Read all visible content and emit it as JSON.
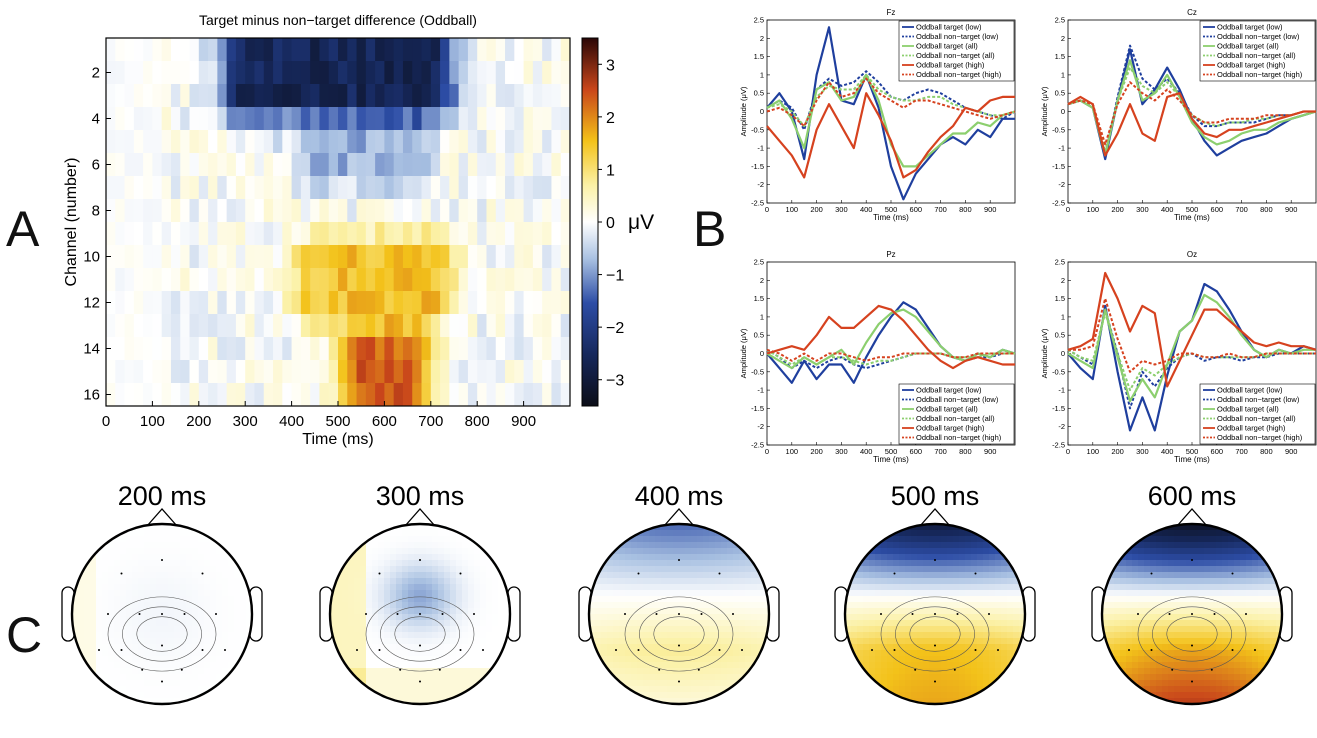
{
  "panel_letters": [
    "A",
    "B",
    "C"
  ],
  "colors": {
    "target_low": "#1f3f9e",
    "target_all": "#8ccf6e",
    "target_high": "#d6421f",
    "axis": "#000000"
  },
  "chart_data": [
    {
      "type": "heatmap",
      "panel": "A",
      "title": "Target minus non−target difference (Oddball)",
      "xlabel": "Time (ms)",
      "ylabel": "Channel (number)",
      "xlim": [
        0,
        1000
      ],
      "ylim": [
        1,
        16
      ],
      "x_ticks": [
        "0",
        "100",
        "200",
        "300",
        "400",
        "500",
        "600",
        "700",
        "800",
        "900"
      ],
      "y_ticks": [
        "2",
        "4",
        "6",
        "8",
        "10",
        "12",
        "14",
        "16"
      ],
      "colorbar": {
        "label": "μV",
        "range": [
          -3.5,
          3.5
        ],
        "ticks": [
          "3",
          "2",
          "1",
          "0",
          "−1",
          "−2",
          "−3"
        ]
      },
      "features": [
        {
          "channels": [
            1,
            3
          ],
          "t_from": 300,
          "t_to": 700,
          "value_uv": -2.6
        },
        {
          "channels": [
            5,
            6
          ],
          "t_from": 450,
          "t_to": 650,
          "value_uv": -0.8
        },
        {
          "channels": [
            10,
            12
          ],
          "t_from": 450,
          "t_to": 700,
          "value_uv": 1.5
        },
        {
          "channels": [
            14,
            16
          ],
          "t_from": 550,
          "t_to": 650,
          "value_uv": 2.3
        }
      ]
    },
    {
      "type": "line",
      "panel": "B",
      "title": "Fz",
      "xlabel": "Time (ms)",
      "ylabel": "Amplitude (μV)",
      "xlim": [
        0,
        1000
      ],
      "ylim": [
        -2.5,
        2.5
      ],
      "x_ticks": [
        "0",
        "100",
        "200",
        "300",
        "400",
        "500",
        "600",
        "700",
        "800",
        "900"
      ],
      "y_ticks": [
        "2.5",
        "2",
        "1.5",
        "1",
        "0.5",
        "0",
        "-0.5",
        "-1",
        "-1.5",
        "-2",
        "-2.5"
      ],
      "legend": [
        "Oddball target (low)",
        "Oddball non−target (low)",
        "Oddball target (all)",
        "Oddball non−target (all)",
        "Oddball target (high)",
        "Oddball non−target (high)"
      ],
      "legend_position": "top-right",
      "x": [
        0,
        50,
        100,
        150,
        200,
        250,
        300,
        350,
        400,
        450,
        500,
        550,
        600,
        650,
        700,
        750,
        800,
        850,
        900,
        950,
        1000
      ],
      "series": [
        {
          "name": "Oddball target (low)",
          "values": [
            0.1,
            0.5,
            0.0,
            -1.3,
            1.0,
            2.3,
            0.3,
            0.2,
            1.0,
            0.1,
            -1.5,
            -2.4,
            -1.7,
            -1.3,
            -0.9,
            -0.7,
            -0.9,
            -0.5,
            -0.7,
            -0.2,
            -0.2
          ]
        },
        {
          "name": "Oddball non−target (low)",
          "values": [
            0.1,
            0.3,
            0.1,
            -0.5,
            0.6,
            0.9,
            0.7,
            0.8,
            1.1,
            0.8,
            0.4,
            0.3,
            0.5,
            0.6,
            0.5,
            0.3,
            0.1,
            0.0,
            -0.1,
            -0.2,
            0.0
          ]
        },
        {
          "name": "Oddball target (all)",
          "values": [
            0.1,
            0.3,
            -0.2,
            -1.0,
            0.6,
            0.8,
            0.3,
            0.4,
            1.0,
            0.3,
            -0.9,
            -1.5,
            -1.5,
            -1.2,
            -0.9,
            -0.6,
            -0.6,
            -0.3,
            -0.4,
            -0.1,
            0.0
          ]
        },
        {
          "name": "Oddball non−target (all)",
          "values": [
            0.1,
            0.2,
            0.0,
            -0.4,
            0.4,
            0.7,
            0.6,
            0.6,
            1.0,
            0.6,
            0.4,
            0.3,
            0.3,
            0.4,
            0.4,
            0.2,
            0.1,
            0.0,
            -0.1,
            -0.1,
            0.0
          ]
        },
        {
          "name": "Oddball target (high)",
          "values": [
            -0.4,
            -0.8,
            -1.2,
            -1.8,
            -0.5,
            0.2,
            -0.4,
            -1.0,
            0.5,
            -0.1,
            -0.8,
            -1.8,
            -1.6,
            -1.1,
            -0.7,
            -0.4,
            0.1,
            0.0,
            0.3,
            0.4,
            0.4
          ]
        },
        {
          "name": "Oddball non−target (high)",
          "values": [
            0.0,
            0.1,
            -0.1,
            -0.4,
            0.3,
            0.8,
            0.4,
            0.5,
            0.9,
            0.5,
            0.3,
            0.1,
            0.3,
            0.3,
            0.2,
            0.1,
            0.0,
            -0.1,
            -0.2,
            -0.1,
            0.0
          ]
        }
      ]
    },
    {
      "type": "line",
      "panel": "B",
      "title": "Cz",
      "xlabel": "Time (ms)",
      "ylabel": "Amplitude (μV)",
      "xlim": [
        0,
        1000
      ],
      "ylim": [
        -2.5,
        2.5
      ],
      "x_ticks": [
        "0",
        "100",
        "200",
        "300",
        "400",
        "500",
        "600",
        "700",
        "800",
        "900"
      ],
      "y_ticks": [
        "2.5",
        "2",
        "1.5",
        "1",
        "0.5",
        "0",
        "-0.5",
        "-1",
        "-1.5",
        "-2",
        "-2.5"
      ],
      "legend": [
        "Oddball target (low)",
        "Oddball non−target (low)",
        "Oddball target (all)",
        "Oddball non−target (all)",
        "Oddball target (high)",
        "Oddball non−target (high)"
      ],
      "legend_position": "top-right",
      "x": [
        0,
        50,
        100,
        150,
        200,
        250,
        300,
        350,
        400,
        450,
        500,
        550,
        600,
        650,
        700,
        750,
        800,
        850,
        900,
        950,
        1000
      ],
      "series": [
        {
          "name": "Oddball target (low)",
          "values": [
            0.2,
            0.3,
            0.1,
            -1.3,
            0.3,
            1.7,
            0.2,
            0.6,
            1.2,
            0.6,
            -0.2,
            -0.8,
            -1.2,
            -1.0,
            -0.8,
            -0.7,
            -0.6,
            -0.4,
            -0.2,
            -0.1,
            0.0
          ]
        },
        {
          "name": "Oddball non−target (low)",
          "values": [
            0.2,
            0.3,
            0.2,
            -1.2,
            0.4,
            1.8,
            0.9,
            0.6,
            0.9,
            0.5,
            -0.1,
            -0.4,
            -0.4,
            -0.3,
            -0.3,
            -0.3,
            -0.2,
            -0.1,
            -0.1,
            0.0,
            0.0
          ]
        },
        {
          "name": "Oddball target (all)",
          "values": [
            0.2,
            0.3,
            0.1,
            -1.2,
            0.3,
            1.4,
            0.3,
            0.5,
            1.0,
            0.4,
            -0.3,
            -0.7,
            -0.9,
            -0.8,
            -0.6,
            -0.5,
            -0.5,
            -0.3,
            -0.2,
            -0.1,
            0.0
          ]
        },
        {
          "name": "Oddball non−target (all)",
          "values": [
            0.2,
            0.3,
            0.2,
            -1.1,
            0.3,
            1.2,
            0.7,
            0.5,
            0.8,
            0.4,
            -0.1,
            -0.3,
            -0.4,
            -0.3,
            -0.3,
            -0.2,
            -0.2,
            -0.1,
            -0.1,
            0.0,
            0.0
          ]
        },
        {
          "name": "Oddball target (high)",
          "values": [
            0.2,
            0.4,
            0.2,
            -1.2,
            -0.6,
            0.2,
            -0.6,
            -0.8,
            0.4,
            0.5,
            -0.2,
            -0.6,
            -0.7,
            -0.5,
            -0.5,
            -0.4,
            -0.3,
            -0.2,
            -0.1,
            0.0,
            0.0
          ]
        },
        {
          "name": "Oddball non−target (high)",
          "values": [
            0.2,
            0.3,
            0.2,
            -0.9,
            0.2,
            0.8,
            0.5,
            0.3,
            0.6,
            0.3,
            -0.1,
            -0.3,
            -0.3,
            -0.2,
            -0.2,
            -0.2,
            -0.1,
            -0.1,
            -0.1,
            0.0,
            0.0
          ]
        }
      ]
    },
    {
      "type": "line",
      "panel": "B",
      "title": "Pz",
      "xlabel": "Time (ms)",
      "ylabel": "Amplitude (μV)",
      "xlim": [
        0,
        1000
      ],
      "ylim": [
        -2.5,
        2.5
      ],
      "x_ticks": [
        "0",
        "100",
        "200",
        "300",
        "400",
        "500",
        "600",
        "700",
        "800",
        "900"
      ],
      "y_ticks": [
        "2.5",
        "2",
        "1.5",
        "1",
        "0.5",
        "0",
        "-0.5",
        "-1",
        "-1.5",
        "-2",
        "-2.5"
      ],
      "legend": [
        "Oddball target (low)",
        "Oddball non−target (low)",
        "Oddball target (all)",
        "Oddball non−target (all)",
        "Oddball target (high)",
        "Oddball non−target (high)"
      ],
      "legend_position": "bottom-right",
      "x": [
        0,
        50,
        100,
        150,
        200,
        250,
        300,
        350,
        400,
        450,
        500,
        550,
        600,
        650,
        700,
        750,
        800,
        850,
        900,
        950,
        1000
      ],
      "series": [
        {
          "name": "Oddball target (low)",
          "values": [
            0.0,
            -0.4,
            -0.8,
            -0.2,
            -0.7,
            -0.3,
            -0.3,
            -0.8,
            -0.1,
            0.5,
            1.0,
            1.4,
            1.2,
            0.7,
            0.2,
            -0.1,
            -0.2,
            0.0,
            -0.1,
            0.1,
            0.0
          ]
        },
        {
          "name": "Oddball non−target (low)",
          "values": [
            0.1,
            -0.1,
            -0.4,
            -0.2,
            -0.4,
            -0.2,
            -0.1,
            -0.3,
            -0.4,
            -0.3,
            -0.2,
            -0.1,
            0.0,
            0.0,
            0.0,
            -0.1,
            -0.2,
            -0.1,
            -0.1,
            0.0,
            0.0
          ]
        },
        {
          "name": "Oddball target (all)",
          "values": [
            0.0,
            -0.2,
            -0.4,
            -0.1,
            -0.3,
            -0.1,
            0.1,
            -0.3,
            0.3,
            0.8,
            1.1,
            1.2,
            1.0,
            0.6,
            0.2,
            -0.1,
            -0.2,
            0.0,
            -0.1,
            0.1,
            0.0
          ]
        },
        {
          "name": "Oddball non−target (all)",
          "values": [
            0.1,
            -0.1,
            -0.3,
            -0.1,
            -0.3,
            -0.1,
            -0.1,
            -0.2,
            -0.3,
            -0.2,
            -0.2,
            -0.1,
            0.0,
            0.0,
            0.0,
            -0.1,
            -0.1,
            -0.1,
            0.0,
            0.0,
            0.0
          ]
        },
        {
          "name": "Oddball target (high)",
          "values": [
            0.0,
            0.1,
            0.2,
            0.1,
            0.5,
            1.0,
            0.7,
            0.7,
            1.0,
            1.3,
            1.2,
            0.9,
            0.5,
            0.1,
            -0.2,
            -0.4,
            -0.2,
            -0.1,
            -0.2,
            -0.3,
            -0.3
          ]
        },
        {
          "name": "Oddball non−target (high)",
          "values": [
            0.1,
            0.0,
            -0.2,
            0.0,
            -0.2,
            0.0,
            0.0,
            -0.1,
            -0.2,
            -0.1,
            -0.1,
            0.0,
            0.0,
            0.0,
            0.0,
            -0.1,
            -0.1,
            0.0,
            0.0,
            0.0,
            0.0
          ]
        }
      ]
    },
    {
      "type": "line",
      "panel": "B",
      "title": "Oz",
      "xlabel": "Time (ms)",
      "ylabel": "Amplitude (μV)",
      "xlim": [
        0,
        1000
      ],
      "ylim": [
        -2.5,
        2.5
      ],
      "x_ticks": [
        "0",
        "100",
        "200",
        "300",
        "400",
        "500",
        "600",
        "700",
        "800",
        "900"
      ],
      "y_ticks": [
        "2.5",
        "2",
        "1.5",
        "1",
        "0.5",
        "0",
        "-0.5",
        "-1",
        "-1.5",
        "-2",
        "-2.5"
      ],
      "legend": [
        "Oddball target (low)",
        "Oddball non−target (low)",
        "Oddball target (all)",
        "Oddball non−target (all)",
        "Oddball target (high)",
        "Oddball non−target (high)"
      ],
      "legend_position": "bottom-right",
      "x": [
        0,
        50,
        100,
        150,
        200,
        250,
        300,
        350,
        400,
        450,
        500,
        550,
        600,
        650,
        700,
        750,
        800,
        850,
        900,
        950,
        1000
      ],
      "series": [
        {
          "name": "Oddball target (low)",
          "values": [
            0.0,
            -0.4,
            -0.7,
            1.3,
            -0.5,
            -2.1,
            -1.2,
            -2.1,
            -0.6,
            0.6,
            0.9,
            1.9,
            1.7,
            1.2,
            0.6,
            0.1,
            -0.1,
            0.1,
            0.0,
            0.2,
            0.1
          ]
        },
        {
          "name": "Oddball non−target (low)",
          "values": [
            0.1,
            -0.1,
            -0.3,
            1.2,
            0.0,
            -1.5,
            -0.5,
            -0.9,
            -0.4,
            -0.1,
            0.0,
            -0.2,
            -0.1,
            -0.1,
            -0.2,
            -0.1,
            -0.1,
            0.0,
            0.0,
            0.0,
            0.0
          ]
        },
        {
          "name": "Oddball target (all)",
          "values": [
            0.0,
            -0.2,
            -0.4,
            1.2,
            -0.1,
            -1.3,
            -0.7,
            -1.2,
            -0.3,
            0.6,
            0.9,
            1.6,
            1.4,
            1.0,
            0.5,
            0.1,
            -0.1,
            0.1,
            0.0,
            0.1,
            0.1
          ]
        },
        {
          "name": "Oddball non−target (all)",
          "values": [
            0.1,
            -0.1,
            -0.2,
            1.1,
            0.0,
            -1.0,
            -0.4,
            -0.6,
            -0.3,
            -0.1,
            0.0,
            -0.1,
            -0.1,
            -0.1,
            -0.1,
            -0.1,
            0.0,
            0.0,
            0.0,
            0.0,
            0.0
          ]
        },
        {
          "name": "Oddball target (high)",
          "values": [
            0.1,
            0.2,
            0.4,
            2.2,
            1.5,
            0.6,
            1.3,
            1.1,
            -0.9,
            -0.2,
            0.5,
            1.2,
            1.2,
            0.9,
            0.6,
            0.3,
            0.2,
            0.3,
            0.2,
            0.2,
            0.1
          ]
        },
        {
          "name": "Oddball non−target (high)",
          "values": [
            0.1,
            0.1,
            0.2,
            1.5,
            0.4,
            -0.5,
            -0.2,
            -0.3,
            -0.2,
            0.0,
            0.0,
            -0.1,
            -0.1,
            0.0,
            -0.1,
            -0.1,
            0.0,
            0.0,
            0.0,
            0.0,
            0.0
          ]
        }
      ]
    },
    {
      "type": "heatmap",
      "panel": "C",
      "subtype": "scalp topographies",
      "colorscale": "same as panel A",
      "maps": [
        {
          "label": "200 ms",
          "frontal": 0.0,
          "central": -0.2,
          "parietal": 0.1,
          "occipital": 0.1
        },
        {
          "label": "300 ms",
          "frontal": -0.2,
          "central": -0.9,
          "parietal": -0.2,
          "occipital": 0.3
        },
        {
          "label": "400 ms",
          "frontal": -1.4,
          "central": 0.0,
          "parietal": 0.8,
          "occipital": 0.3
        },
        {
          "label": "500 ms",
          "frontal": -2.9,
          "central": 0.0,
          "parietal": 1.6,
          "occipital": 1.8
        },
        {
          "label": "600 ms",
          "frontal": -3.3,
          "central": 0.0,
          "parietal": 1.8,
          "occipital": 2.6
        }
      ]
    }
  ]
}
